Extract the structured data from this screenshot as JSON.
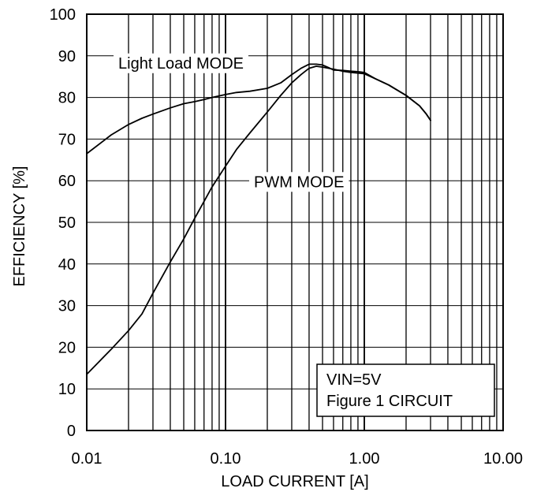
{
  "chart_data": {
    "type": "line",
    "xlabel": "LOAD CURRENT [A]",
    "ylabel": "EFFICIENCY [%]",
    "x_scale": "log",
    "xlim": [
      0.01,
      10
    ],
    "ylim": [
      0,
      100
    ],
    "x_tick_labels": [
      "0.01",
      "0.10",
      "1.00",
      "10.00"
    ],
    "y_tick_labels": [
      "0",
      "10",
      "20",
      "30",
      "40",
      "50",
      "60",
      "70",
      "80",
      "90",
      "100"
    ],
    "grid": true,
    "series": [
      {
        "name": "Light Load MODE",
        "x": [
          0.01,
          0.015,
          0.02,
          0.025,
          0.03,
          0.04,
          0.05,
          0.06,
          0.07,
          0.08,
          0.1,
          0.12,
          0.15,
          0.2,
          0.25,
          0.3,
          0.35,
          0.4,
          0.45,
          0.5,
          0.55,
          0.6,
          0.7,
          0.8,
          0.9,
          1.0,
          1.2,
          1.5,
          2.0,
          2.5,
          2.8,
          3.0
        ],
        "y": [
          66.5,
          71,
          73.5,
          75,
          76,
          77.5,
          78.5,
          79,
          79.5,
          80,
          80.7,
          81.2,
          81.5,
          82.2,
          83.5,
          85.5,
          87,
          88,
          88,
          87.8,
          87.2,
          86.6,
          86.5,
          86.3,
          86.2,
          86,
          84.5,
          83,
          80.5,
          78,
          76,
          74.5
        ]
      },
      {
        "name": "PWM MODE",
        "x": [
          0.01,
          0.015,
          0.02,
          0.025,
          0.03,
          0.04,
          0.05,
          0.06,
          0.07,
          0.08,
          0.1,
          0.12,
          0.15,
          0.2,
          0.25,
          0.3,
          0.35,
          0.4,
          0.45,
          0.5,
          0.6,
          0.7,
          0.8,
          1.0,
          1.2,
          1.5,
          2.0,
          2.5,
          2.8,
          3.0
        ],
        "y": [
          13.5,
          19.5,
          24,
          28,
          33,
          40.5,
          46,
          51,
          55,
          58.5,
          63.5,
          67.5,
          71.5,
          76.5,
          80.5,
          83.5,
          85.5,
          87,
          87.5,
          87.3,
          86.8,
          86.3,
          86,
          85.7,
          84.5,
          83,
          80.5,
          78,
          76,
          74.5
        ]
      }
    ],
    "annotations": {
      "light_load_label": "Light Load MODE",
      "pwm_label": "PWM MODE",
      "box_line1": "VIN=5V",
      "box_line2": "Figure 1 CIRCUIT"
    },
    "colors": {
      "line": "#000000",
      "grid": "#000000",
      "background": "#ffffff"
    }
  }
}
